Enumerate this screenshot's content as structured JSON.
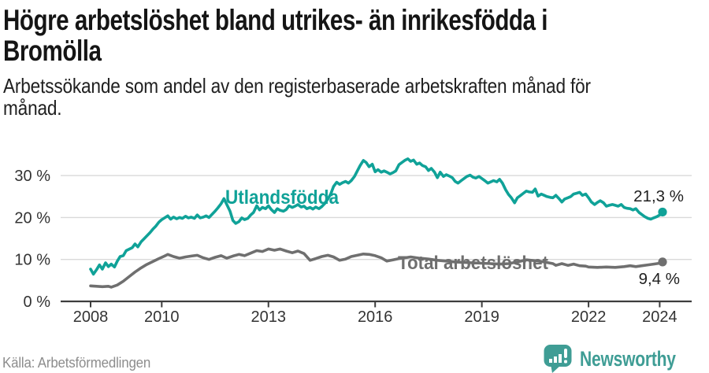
{
  "header": {
    "title_lines": [
      "Högre arbetslöshet bland utrikes- än inrikesfödda i",
      "Bromölla"
    ],
    "subtitle_lines": [
      "Arbetssökande som andel av den registerbaserade arbetskraften månad för",
      "månad."
    ]
  },
  "chart_data": {
    "type": "line",
    "title": "Högre arbetslöshet bland utrikes- än inrikesfödda i Bromölla",
    "subtitle": "Arbetssökande som andel av den registerbaserade arbetskraften månad för månad.",
    "xlabel": "",
    "ylabel": "",
    "x_unit": "decimal year (monthly observations)",
    "xlim": [
      2007.2,
      2024.9
    ],
    "ylim": [
      0,
      37
    ],
    "grid": "horizontal gridlines at 10/20/30 %",
    "legend_position": "inline labels on lines",
    "xticks": [
      2008,
      2010,
      2013,
      2016,
      2019,
      2022,
      2024
    ],
    "xtick_labels": [
      "2008",
      "2010",
      "2013",
      "2016",
      "2019",
      "2022",
      "2024"
    ],
    "yticks": [
      0,
      10,
      20,
      30
    ],
    "ytick_labels": [
      "0 %",
      "10 %",
      "20 %",
      "30 %"
    ],
    "series": [
      {
        "name": "Utlandsfödda",
        "color": "#10a298",
        "end_value": 21.3,
        "end_label": "21,3 %",
        "points": [
          [
            2008.0,
            7.7
          ],
          [
            2008.08,
            6.5
          ],
          [
            2008.17,
            7.6
          ],
          [
            2008.25,
            8.7
          ],
          [
            2008.33,
            7.7
          ],
          [
            2008.42,
            9.2
          ],
          [
            2008.5,
            8.3
          ],
          [
            2008.58,
            8.9
          ],
          [
            2008.67,
            8.2
          ],
          [
            2008.75,
            9.6
          ],
          [
            2008.83,
            10.7
          ],
          [
            2008.92,
            10.9
          ],
          [
            2009.0,
            12.1
          ],
          [
            2009.17,
            12.8
          ],
          [
            2009.25,
            13.7
          ],
          [
            2009.33,
            13.0
          ],
          [
            2009.42,
            14.2
          ],
          [
            2009.5,
            14.9
          ],
          [
            2009.58,
            15.6
          ],
          [
            2009.67,
            16.4
          ],
          [
            2009.75,
            17.2
          ],
          [
            2009.83,
            17.9
          ],
          [
            2009.92,
            18.9
          ],
          [
            2010.0,
            19.5
          ],
          [
            2010.08,
            19.9
          ],
          [
            2010.17,
            20.4
          ],
          [
            2010.25,
            19.6
          ],
          [
            2010.33,
            20.1
          ],
          [
            2010.42,
            19.7
          ],
          [
            2010.5,
            20.0
          ],
          [
            2010.58,
            19.8
          ],
          [
            2010.67,
            20.3
          ],
          [
            2010.75,
            19.9
          ],
          [
            2010.83,
            20.1
          ],
          [
            2010.92,
            19.8
          ],
          [
            2011.0,
            20.6
          ],
          [
            2011.08,
            19.9
          ],
          [
            2011.17,
            20.1
          ],
          [
            2011.25,
            20.4
          ],
          [
            2011.33,
            20.0
          ],
          [
            2011.42,
            20.8
          ],
          [
            2011.5,
            21.5
          ],
          [
            2011.58,
            22.3
          ],
          [
            2011.67,
            23.3
          ],
          [
            2011.75,
            24.5
          ],
          [
            2011.83,
            23.1
          ],
          [
            2011.92,
            21.5
          ],
          [
            2012.0,
            19.3
          ],
          [
            2012.08,
            18.6
          ],
          [
            2012.17,
            19.0
          ],
          [
            2012.25,
            19.9
          ],
          [
            2012.33,
            19.5
          ],
          [
            2012.42,
            19.8
          ],
          [
            2012.5,
            20.6
          ],
          [
            2012.58,
            21.2
          ],
          [
            2012.67,
            22.8
          ],
          [
            2012.75,
            21.8
          ],
          [
            2012.83,
            22.4
          ],
          [
            2012.92,
            22.1
          ],
          [
            2013.0,
            22.8
          ],
          [
            2013.08,
            21.9
          ],
          [
            2013.17,
            21.2
          ],
          [
            2013.25,
            22.1
          ],
          [
            2013.33,
            21.7
          ],
          [
            2013.42,
            21.5
          ],
          [
            2013.5,
            21.9
          ],
          [
            2013.58,
            22.8
          ],
          [
            2013.67,
            22.4
          ],
          [
            2013.75,
            22.7
          ],
          [
            2013.83,
            23.1
          ],
          [
            2013.92,
            22.5
          ],
          [
            2014.0,
            22.7
          ],
          [
            2014.08,
            22.1
          ],
          [
            2014.17,
            22.4
          ],
          [
            2014.25,
            22.0
          ],
          [
            2014.33,
            22.5
          ],
          [
            2014.42,
            22.1
          ],
          [
            2014.5,
            22.6
          ],
          [
            2014.58,
            23.3
          ],
          [
            2014.67,
            24.4
          ],
          [
            2014.75,
            25.6
          ],
          [
            2014.83,
            27.4
          ],
          [
            2014.92,
            28.4
          ],
          [
            2015.0,
            27.9
          ],
          [
            2015.08,
            28.3
          ],
          [
            2015.17,
            28.6
          ],
          [
            2015.25,
            28.2
          ],
          [
            2015.33,
            28.8
          ],
          [
            2015.42,
            29.8
          ],
          [
            2015.5,
            31.1
          ],
          [
            2015.58,
            32.4
          ],
          [
            2015.67,
            33.6
          ],
          [
            2015.75,
            33.1
          ],
          [
            2015.83,
            32.1
          ],
          [
            2015.92,
            32.7
          ],
          [
            2016.0,
            30.9
          ],
          [
            2016.08,
            31.4
          ],
          [
            2016.17,
            30.8
          ],
          [
            2016.25,
            31.1
          ],
          [
            2016.33,
            30.8
          ],
          [
            2016.42,
            30.4
          ],
          [
            2016.5,
            30.7
          ],
          [
            2016.58,
            31.1
          ],
          [
            2016.67,
            32.6
          ],
          [
            2016.75,
            33.1
          ],
          [
            2016.83,
            33.6
          ],
          [
            2016.92,
            34.0
          ],
          [
            2017.0,
            33.4
          ],
          [
            2017.08,
            33.7
          ],
          [
            2017.17,
            32.7
          ],
          [
            2017.25,
            33.0
          ],
          [
            2017.33,
            32.4
          ],
          [
            2017.42,
            32.1
          ],
          [
            2017.5,
            31.2
          ],
          [
            2017.58,
            31.7
          ],
          [
            2017.67,
            30.8
          ],
          [
            2017.75,
            29.5
          ],
          [
            2017.83,
            30.8
          ],
          [
            2017.92,
            29.8
          ],
          [
            2018.0,
            30.2
          ],
          [
            2018.08,
            29.9
          ],
          [
            2018.17,
            29.5
          ],
          [
            2018.25,
            28.6
          ],
          [
            2018.33,
            28.2
          ],
          [
            2018.42,
            28.8
          ],
          [
            2018.5,
            29.3
          ],
          [
            2018.58,
            29.8
          ],
          [
            2018.67,
            30.1
          ],
          [
            2018.75,
            29.6
          ],
          [
            2018.83,
            29.4
          ],
          [
            2018.92,
            29.8
          ],
          [
            2019.0,
            29.3
          ],
          [
            2019.08,
            28.8
          ],
          [
            2019.17,
            28.2
          ],
          [
            2019.25,
            28.5
          ],
          [
            2019.33,
            28.8
          ],
          [
            2019.42,
            28.5
          ],
          [
            2019.5,
            29.1
          ],
          [
            2019.58,
            28.2
          ],
          [
            2019.67,
            26.6
          ],
          [
            2019.75,
            25.5
          ],
          [
            2019.83,
            24.7
          ],
          [
            2019.92,
            23.5
          ],
          [
            2020.0,
            24.7
          ],
          [
            2020.08,
            25.2
          ],
          [
            2020.17,
            25.8
          ],
          [
            2020.25,
            26.3
          ],
          [
            2020.33,
            26.1
          ],
          [
            2020.42,
            26.0
          ],
          [
            2020.5,
            26.8
          ],
          [
            2020.58,
            25.1
          ],
          [
            2020.67,
            25.6
          ],
          [
            2020.75,
            25.3
          ],
          [
            2020.83,
            25.0
          ],
          [
            2020.92,
            24.8
          ],
          [
            2021.0,
            24.7
          ],
          [
            2021.08,
            25.3
          ],
          [
            2021.17,
            24.5
          ],
          [
            2021.25,
            23.7
          ],
          [
            2021.33,
            24.4
          ],
          [
            2021.42,
            24.7
          ],
          [
            2021.5,
            25.0
          ],
          [
            2021.58,
            25.6
          ],
          [
            2021.67,
            25.8
          ],
          [
            2021.75,
            26.0
          ],
          [
            2021.83,
            25.3
          ],
          [
            2021.92,
            25.6
          ],
          [
            2022.0,
            24.7
          ],
          [
            2022.08,
            23.7
          ],
          [
            2022.17,
            23.1
          ],
          [
            2022.25,
            23.6
          ],
          [
            2022.33,
            24.0
          ],
          [
            2022.42,
            23.5
          ],
          [
            2022.5,
            22.7
          ],
          [
            2022.58,
            22.9
          ],
          [
            2022.67,
            23.1
          ],
          [
            2022.75,
            22.9
          ],
          [
            2022.83,
            22.7
          ],
          [
            2022.92,
            23.1
          ],
          [
            2023.0,
            22.4
          ],
          [
            2023.08,
            22.2
          ],
          [
            2023.17,
            22.1
          ],
          [
            2023.25,
            21.8
          ],
          [
            2023.33,
            22.1
          ],
          [
            2023.42,
            21.2
          ],
          [
            2023.5,
            20.7
          ],
          [
            2023.58,
            20.2
          ],
          [
            2023.67,
            19.8
          ],
          [
            2023.75,
            19.6
          ],
          [
            2023.83,
            19.9
          ],
          [
            2023.92,
            20.2
          ],
          [
            2024.0,
            20.6
          ],
          [
            2024.08,
            21.3
          ]
        ]
      },
      {
        "name": "Total arbetslöshet",
        "color": "#6f6f6f",
        "end_value": 9.4,
        "end_label": "9,4 %",
        "points": [
          [
            2008.0,
            3.7
          ],
          [
            2008.17,
            3.6
          ],
          [
            2008.33,
            3.5
          ],
          [
            2008.5,
            3.6
          ],
          [
            2008.58,
            3.4
          ],
          [
            2008.75,
            3.9
          ],
          [
            2008.92,
            4.8
          ],
          [
            2009.08,
            5.9
          ],
          [
            2009.25,
            7.0
          ],
          [
            2009.42,
            8.0
          ],
          [
            2009.58,
            8.8
          ],
          [
            2009.75,
            9.5
          ],
          [
            2009.92,
            10.2
          ],
          [
            2010.08,
            10.8
          ],
          [
            2010.17,
            11.2
          ],
          [
            2010.33,
            10.7
          ],
          [
            2010.5,
            10.3
          ],
          [
            2010.67,
            10.6
          ],
          [
            2010.83,
            10.8
          ],
          [
            2011.0,
            11.0
          ],
          [
            2011.17,
            10.4
          ],
          [
            2011.33,
            10.0
          ],
          [
            2011.5,
            10.5
          ],
          [
            2011.67,
            10.9
          ],
          [
            2011.83,
            10.3
          ],
          [
            2012.0,
            10.8
          ],
          [
            2012.17,
            11.2
          ],
          [
            2012.33,
            10.9
          ],
          [
            2012.5,
            11.5
          ],
          [
            2012.67,
            12.1
          ],
          [
            2012.83,
            11.9
          ],
          [
            2013.0,
            12.5
          ],
          [
            2013.17,
            12.2
          ],
          [
            2013.33,
            12.5
          ],
          [
            2013.5,
            12.0
          ],
          [
            2013.67,
            11.6
          ],
          [
            2013.83,
            12.0
          ],
          [
            2014.0,
            11.4
          ],
          [
            2014.17,
            9.8
          ],
          [
            2014.33,
            10.2
          ],
          [
            2014.5,
            10.7
          ],
          [
            2014.67,
            11.0
          ],
          [
            2014.83,
            10.6
          ],
          [
            2015.0,
            9.8
          ],
          [
            2015.17,
            10.1
          ],
          [
            2015.33,
            10.7
          ],
          [
            2015.5,
            11.0
          ],
          [
            2015.67,
            11.3
          ],
          [
            2015.83,
            11.2
          ],
          [
            2016.0,
            10.9
          ],
          [
            2016.17,
            10.4
          ],
          [
            2016.33,
            9.6
          ],
          [
            2016.5,
            9.9
          ],
          [
            2016.67,
            10.2
          ],
          [
            2016.83,
            10.4
          ],
          [
            2017.0,
            10.6
          ],
          [
            2017.25,
            10.3
          ],
          [
            2017.5,
            10.1
          ],
          [
            2017.75,
            9.8
          ],
          [
            2018.0,
            9.6
          ],
          [
            2018.25,
            9.4
          ],
          [
            2018.5,
            9.3
          ],
          [
            2018.75,
            9.2
          ],
          [
            2019.0,
            9.1
          ],
          [
            2019.25,
            9.0
          ],
          [
            2019.5,
            8.9
          ],
          [
            2019.75,
            9.0
          ],
          [
            2020.0,
            9.4
          ],
          [
            2020.25,
            9.9
          ],
          [
            2020.5,
            9.7
          ],
          [
            2020.75,
            9.4
          ],
          [
            2021.0,
            9.0
          ],
          [
            2021.08,
            8.6
          ],
          [
            2021.25,
            9.0
          ],
          [
            2021.42,
            8.6
          ],
          [
            2021.58,
            8.9
          ],
          [
            2021.75,
            8.5
          ],
          [
            2021.92,
            8.4
          ],
          [
            2022.0,
            8.2
          ],
          [
            2022.25,
            8.1
          ],
          [
            2022.5,
            8.2
          ],
          [
            2022.75,
            8.1
          ],
          [
            2023.0,
            8.3
          ],
          [
            2023.17,
            8.5
          ],
          [
            2023.33,
            8.3
          ],
          [
            2023.5,
            8.5
          ],
          [
            2023.67,
            8.7
          ],
          [
            2023.83,
            8.9
          ],
          [
            2024.0,
            9.1
          ],
          [
            2024.08,
            9.4
          ]
        ]
      }
    ]
  },
  "footer": {
    "source": "Källa: Arbetsförmedlingen",
    "brand": "Newsworthy"
  },
  "colors": {
    "accent_teal": "#10a298",
    "line_gray": "#6f6f6f",
    "logo_teal": "#3f9d95",
    "gridline": "#d9d9d9",
    "axis": "#3d3d3d",
    "axis_text": "#333333",
    "end_label_text": "#1f1f1f",
    "title_text": "#151515",
    "source_text": "#8d8d8d",
    "background": "#ffffff"
  }
}
